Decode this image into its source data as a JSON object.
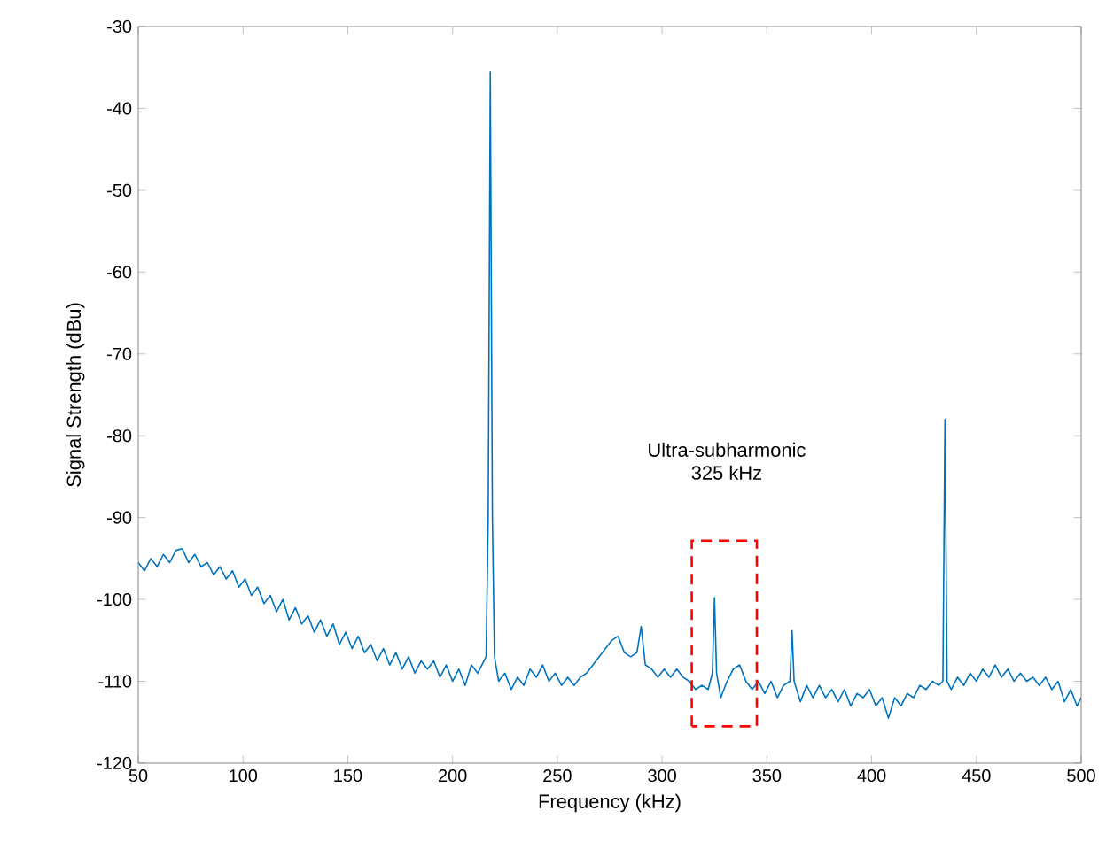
{
  "chart_data": {
    "type": "line",
    "xlabel": "Frequency (kHz)",
    "ylabel": "Signal Strength (dBu)",
    "xlim": [
      50,
      500
    ],
    "ylim": [
      -120,
      -30
    ],
    "xticks": [
      50,
      100,
      150,
      200,
      250,
      300,
      350,
      400,
      450,
      500
    ],
    "yticks": [
      -120,
      -110,
      -100,
      -90,
      -80,
      -70,
      -60,
      -50,
      -40,
      -30
    ],
    "grid": false,
    "legend": false,
    "annotations": [
      "Ultra-subharmonic",
      "325 kHz"
    ],
    "series": [
      {
        "color": "#0072bd",
        "x": [
          50,
          53,
          56,
          59,
          62,
          65,
          68,
          71,
          74,
          77,
          80,
          83,
          86,
          89,
          92,
          95,
          98,
          101,
          104,
          107,
          110,
          113,
          116,
          119,
          122,
          125,
          128,
          131,
          134,
          137,
          140,
          143,
          146,
          149,
          152,
          155,
          158,
          161,
          164,
          167,
          170,
          173,
          176,
          179,
          182,
          185,
          188,
          191,
          194,
          197,
          200,
          203,
          206,
          209,
          212,
          214,
          216,
          217,
          218,
          219,
          220,
          222,
          225,
          228,
          231,
          234,
          237,
          240,
          243,
          246,
          249,
          252,
          255,
          258,
          261,
          264,
          267,
          270,
          273,
          276,
          279,
          282,
          285,
          288,
          290,
          292,
          295,
          298,
          301,
          304,
          307,
          310,
          313,
          316,
          319,
          322,
          324,
          325,
          326,
          328,
          331,
          334,
          337,
          340,
          343,
          346,
          349,
          352,
          355,
          358,
          361,
          362,
          363,
          366,
          369,
          372,
          375,
          378,
          381,
          384,
          387,
          390,
          393,
          396,
          399,
          402,
          405,
          408,
          411,
          414,
          417,
          420,
          423,
          426,
          429,
          432,
          434,
          435,
          436,
          438,
          441,
          444,
          447,
          450,
          453,
          456,
          459,
          462,
          465,
          468,
          471,
          474,
          477,
          480,
          483,
          486,
          489,
          492,
          495,
          498,
          500
        ],
        "values": [
          -95.5,
          -96.5,
          -95,
          -96,
          -94.5,
          -95.5,
          -94,
          -93.8,
          -95.5,
          -94.5,
          -96,
          -95.5,
          -97,
          -96,
          -97.5,
          -96.5,
          -98.5,
          -97.5,
          -99.5,
          -98.5,
          -100.5,
          -99.5,
          -101.5,
          -100,
          -102.5,
          -101,
          -103,
          -102,
          -104,
          -102.5,
          -104.5,
          -103,
          -105.5,
          -104,
          -106,
          -104.5,
          -106.5,
          -105.5,
          -107.5,
          -106,
          -108,
          -106.5,
          -108.5,
          -107,
          -109,
          -107.5,
          -108.5,
          -107.5,
          -109.5,
          -108,
          -110,
          -108.5,
          -110.5,
          -108,
          -109,
          -108,
          -107,
          -90,
          -35.5,
          -90,
          -107,
          -110,
          -109,
          -111,
          -109.5,
          -110.5,
          -108.5,
          -109.5,
          -108,
          -110,
          -109,
          -110.5,
          -109.5,
          -110.5,
          -109.5,
          -109,
          -108,
          -107,
          -106,
          -105,
          -104.5,
          -106.5,
          -107,
          -106.5,
          -103.3,
          -108,
          -108.5,
          -109.5,
          -108.5,
          -109.5,
          -108.5,
          -109.5,
          -110,
          -111,
          -110.5,
          -111,
          -109,
          -99.8,
          -109,
          -112,
          -110,
          -108.5,
          -108,
          -110,
          -111,
          -110,
          -111.5,
          -110,
          -112,
          -110.5,
          -110,
          -103.8,
          -110,
          -112.5,
          -110.5,
          -112,
          -110.5,
          -112,
          -111,
          -112.5,
          -111,
          -113,
          -111.5,
          -112,
          -111,
          -113,
          -112,
          -114.5,
          -112,
          -113,
          -111.5,
          -112,
          -110.5,
          -111,
          -110,
          -110.5,
          -110,
          -78,
          -110,
          -111,
          -109.5,
          -110.5,
          -109,
          -110,
          -108.5,
          -109.5,
          -108,
          -109.5,
          -108.5,
          -110,
          -109,
          -110,
          -109.5,
          -110.5,
          -109.5,
          -111,
          -110,
          -112.5,
          -111,
          -113,
          -112
        ]
      }
    ]
  }
}
